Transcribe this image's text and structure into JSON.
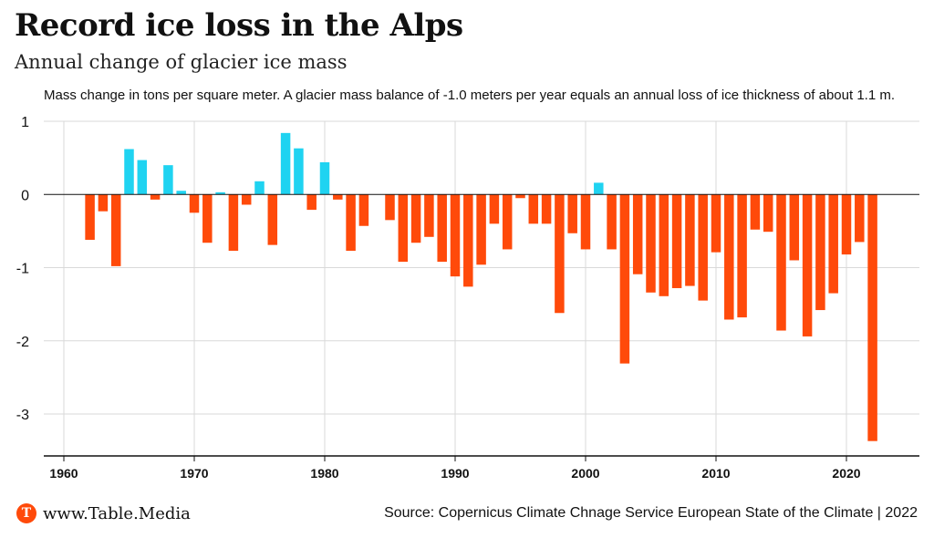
{
  "header": {
    "title": "Record ice loss in the Alps",
    "subtitle": "Annual change of glacier ice mass",
    "note": "Mass change in tons per square meter. A glacier mass balance of -1.0 meters per year equals an annual loss of ice thickness of about 1.1 m."
  },
  "footer": {
    "brand": "www.Table.Media",
    "brand_icon": "T",
    "source": "Source: Copernicus Climate Chnage Service European State of the Climate | 2022"
  },
  "colors": {
    "positive": "#1fd3f1",
    "negative": "#ff4a0a",
    "grid": "#d9d9d9",
    "axis": "#111111",
    "brand": "#ff4a0a"
  },
  "chart_data": {
    "type": "bar",
    "title": "Record ice loss in the Alps",
    "subtitle": "Annual change of glacier ice mass",
    "xlabel": "",
    "ylabel": "",
    "xlim": [
      1959,
      2026
    ],
    "ylim": [
      -3.6,
      1.0
    ],
    "yticks": [
      1,
      0,
      -1,
      -2,
      -3
    ],
    "ytick_labels": [
      "1",
      "0",
      "-1",
      "-2",
      "-3"
    ],
    "xticks": [
      1960,
      1970,
      1980,
      1990,
      2000,
      2010,
      2020
    ],
    "xtick_labels": [
      "1960",
      "1970",
      "1980",
      "1990",
      "2000",
      "2010",
      "2020"
    ],
    "grid": true,
    "x": [
      1962,
      1963,
      1964,
      1965,
      1966,
      1967,
      1968,
      1969,
      1970,
      1971,
      1972,
      1973,
      1974,
      1975,
      1976,
      1977,
      1978,
      1979,
      1980,
      1981,
      1982,
      1983,
      1984,
      1985,
      1986,
      1987,
      1988,
      1989,
      1990,
      1991,
      1992,
      1993,
      1994,
      1995,
      1996,
      1997,
      1998,
      1999,
      2000,
      2001,
      2002,
      2003,
      2004,
      2005,
      2006,
      2007,
      2008,
      2009,
      2010,
      2011,
      2012,
      2013,
      2014,
      2015,
      2016,
      2017,
      2018,
      2019,
      2020,
      2021,
      2022
    ],
    "values": [
      -0.62,
      -0.23,
      -0.98,
      0.62,
      0.47,
      -0.07,
      0.4,
      0.05,
      -0.25,
      -0.66,
      0.03,
      -0.77,
      -0.14,
      0.18,
      -0.69,
      0.84,
      0.63,
      -0.21,
      0.44,
      -0.07,
      -0.77,
      -0.43,
      0.0,
      -0.35,
      -0.92,
      -0.66,
      -0.58,
      -0.92,
      -1.12,
      -1.26,
      -0.96,
      -0.4,
      -0.75,
      -0.05,
      -0.4,
      -0.4,
      -1.62,
      -0.53,
      -0.75,
      0.16,
      -0.75,
      -2.31,
      -1.09,
      -1.34,
      -1.39,
      -1.28,
      -1.25,
      -1.45,
      -0.79,
      -1.71,
      -1.68,
      -0.48,
      -0.51,
      -1.86,
      -0.9,
      -1.94,
      -1.58,
      -1.35,
      -0.82,
      -0.65,
      -3.37
    ]
  }
}
